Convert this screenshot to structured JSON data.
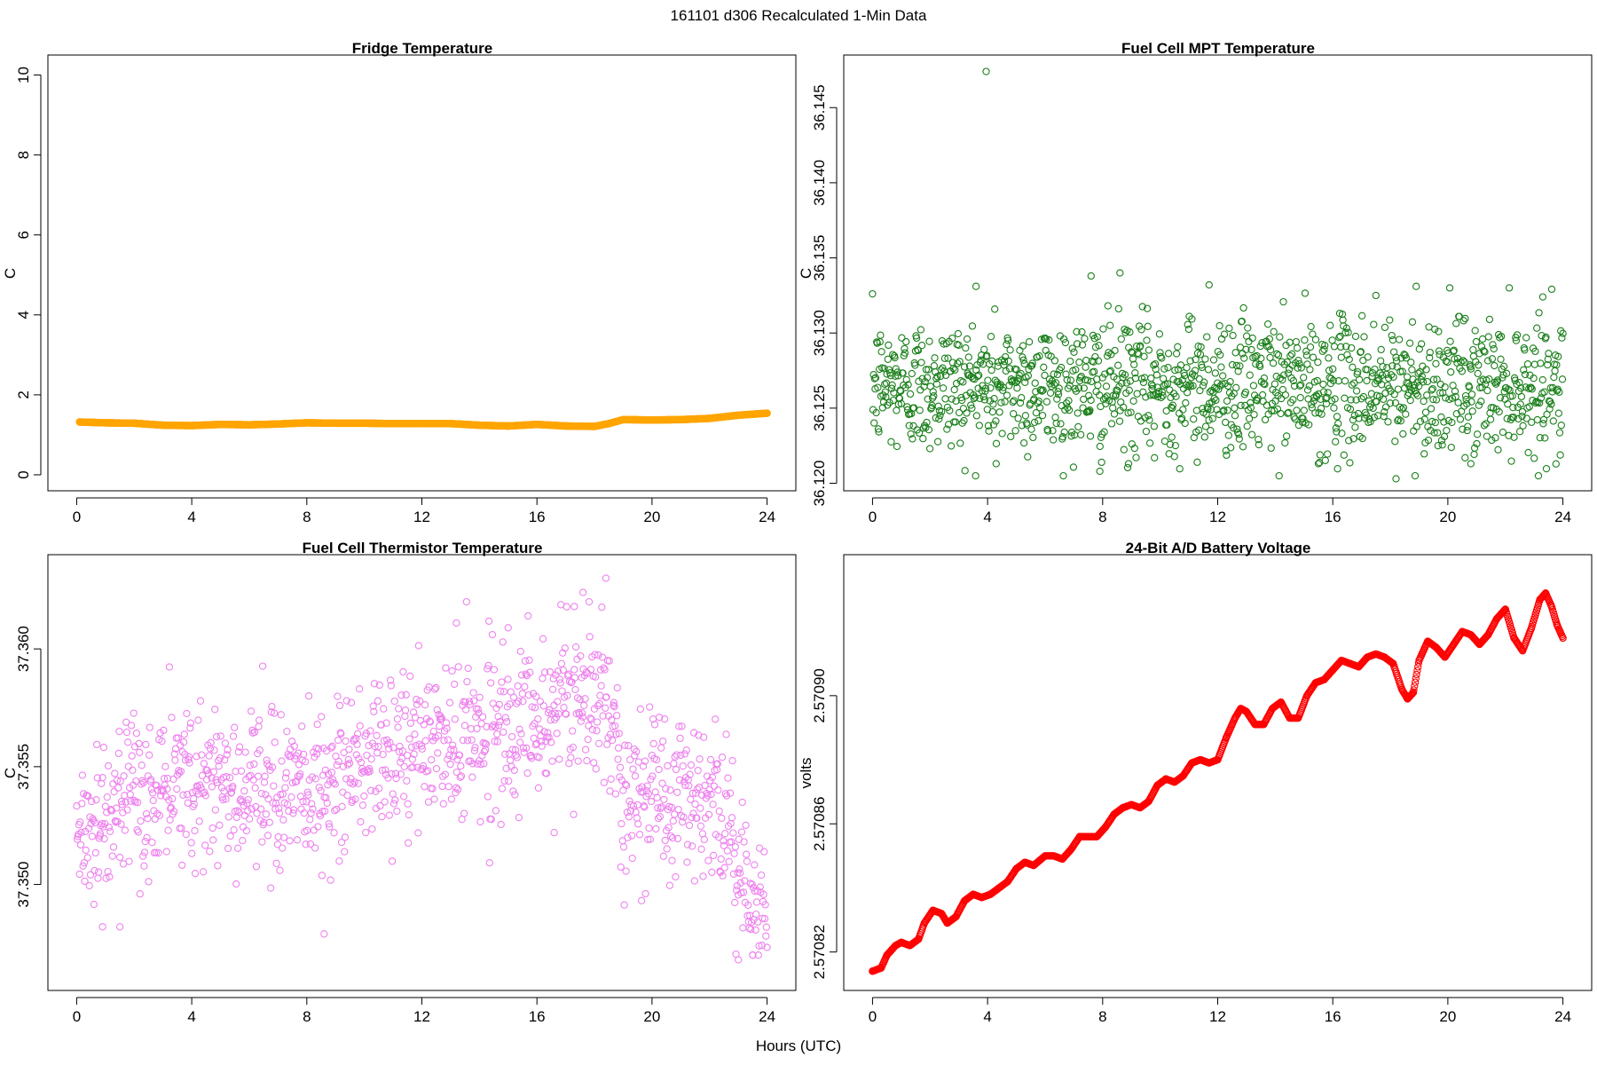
{
  "figure": {
    "title": "161101   d306   Recalculated 1-Min Data",
    "xlabel": "Hours (UTC)"
  },
  "chart_data": [
    {
      "id": "fridge",
      "type": "scatter",
      "title": "Fridge Temperature",
      "ylabel": "C",
      "xlim": [
        -1,
        25
      ],
      "ylim": [
        -0.4,
        10.5
      ],
      "xticks": [
        0,
        4,
        8,
        12,
        16,
        20,
        24
      ],
      "yticks": [
        0,
        2,
        4,
        6,
        8,
        10
      ],
      "ytick_labels": [
        "0",
        "2",
        "4",
        "6",
        "8",
        "10"
      ],
      "color": "#FFA500",
      "marker": "filled-circle",
      "series": [
        {
          "x": [
            0.1,
            1.0,
            2.0,
            3.0,
            4.0,
            5.0,
            6.0,
            7.0,
            8.0,
            9.0,
            10.0,
            11.0,
            12.0,
            13.0,
            14.0,
            15.0,
            16.0,
            17.0,
            18.0,
            18.5,
            19.0,
            20.0,
            21.0,
            22.0,
            23.0,
            24.0
          ],
          "y": [
            1.32,
            1.3,
            1.29,
            1.24,
            1.23,
            1.26,
            1.25,
            1.27,
            1.3,
            1.29,
            1.29,
            1.28,
            1.28,
            1.28,
            1.24,
            1.22,
            1.26,
            1.22,
            1.21,
            1.28,
            1.38,
            1.37,
            1.38,
            1.41,
            1.49,
            1.54
          ]
        }
      ]
    },
    {
      "id": "mpt",
      "type": "scatter",
      "title": "Fuel Cell MPT Temperature",
      "ylabel": "C",
      "xlim": [
        -1,
        25
      ],
      "ylim": [
        36.1195,
        36.1485
      ],
      "xticks": [
        0,
        4,
        8,
        12,
        16,
        20,
        24
      ],
      "yticks": [
        36.12,
        36.125,
        36.13,
        36.135,
        36.14,
        36.145
      ],
      "ytick_labels": [
        "36.120",
        "36.125",
        "36.130",
        "36.135",
        "36.140",
        "36.145"
      ],
      "color": "#1A7F1A",
      "marker": "open-circle",
      "noise": {
        "center": 36.1265,
        "spread": 0.0022,
        "n": 1300
      },
      "series": [
        {
          "x": [
            3.95,
            18.2,
            8.6,
            7.6,
            11.7,
            3.6,
            17.5,
            18.9,
            23.3,
            20.6,
            9.8,
            7.9,
            15.5,
            20.8,
            4.3,
            8.9
          ],
          "y": [
            36.1474,
            36.1203,
            36.134,
            36.1338,
            36.1332,
            36.1331,
            36.1325,
            36.1331,
            36.1324,
            36.1217,
            36.1217,
            36.1208,
            36.1213,
            36.1213,
            36.1213,
            36.1213
          ]
        }
      ]
    },
    {
      "id": "thermistor",
      "type": "scatter",
      "title": "Fuel Cell Thermistor Temperature",
      "ylabel": "C",
      "xlim": [
        -1,
        25
      ],
      "ylim": [
        37.3455,
        37.364
      ],
      "xticks": [
        0,
        4,
        8,
        12,
        16,
        20,
        24
      ],
      "yticks": [
        37.35,
        37.355,
        37.36
      ],
      "ytick_labels": [
        "37.350",
        "37.355",
        "37.360"
      ],
      "color": "#EE82EE",
      "marker": "open-circle",
      "trend": {
        "x": [
          0,
          2,
          4,
          6,
          8,
          10,
          12,
          14,
          16,
          17,
          18,
          18.5,
          19,
          20,
          21,
          22,
          22.5,
          23,
          23.5,
          24
        ],
        "y": [
          37.3523,
          37.3533,
          37.3545,
          37.354,
          37.354,
          37.355,
          37.3558,
          37.3565,
          37.357,
          37.3578,
          37.358,
          37.3575,
          37.354,
          37.3542,
          37.3538,
          37.3535,
          37.3528,
          37.351,
          37.349,
          37.3485
        ]
      },
      "noise": {
        "spread": 0.0017,
        "n": 1200
      },
      "series": [
        {
          "x": [
            18.4,
            17.6,
            17.3,
            13.2,
            15.0,
            8.6,
            23.0,
            23.5,
            1.5,
            0.9,
            16.6
          ],
          "y": [
            37.363,
            37.3624,
            37.3618,
            37.3611,
            37.3609,
            37.3479,
            37.3468,
            37.347,
            37.3482,
            37.3482,
            37.3522
          ]
        }
      ]
    },
    {
      "id": "battery",
      "type": "scatter",
      "title": "24-Bit A/D Battery Voltage",
      "ylabel": "volts",
      "xlim": [
        -1,
        25
      ],
      "ylim": [
        2.570808,
        2.570944
      ],
      "xticks": [
        0,
        4,
        8,
        12,
        16,
        20,
        24
      ],
      "yticks": [
        2.57082,
        2.57086,
        2.5709
      ],
      "ytick_labels": [
        "2.57082",
        "2.57086",
        "2.57090"
      ],
      "color": "#FF0000",
      "marker": "open-circle",
      "series": [
        {
          "x": [
            0.0,
            0.3,
            0.5,
            0.8,
            1.0,
            1.3,
            1.6,
            1.8,
            2.1,
            2.4,
            2.6,
            2.9,
            3.2,
            3.5,
            3.8,
            4.1,
            4.4,
            4.7,
            5.0,
            5.3,
            5.6,
            6.0,
            6.3,
            6.6,
            6.9,
            7.2,
            7.5,
            7.8,
            8.1,
            8.4,
            8.7,
            9.0,
            9.3,
            9.6,
            9.9,
            10.2,
            10.5,
            10.8,
            11.1,
            11.4,
            11.7,
            12.0,
            12.3,
            12.6,
            12.8,
            13.0,
            13.3,
            13.6,
            13.9,
            14.2,
            14.5,
            14.8,
            15.1,
            15.4,
            15.7,
            16.0,
            16.3,
            16.6,
            16.9,
            17.2,
            17.5,
            17.8,
            18.1,
            18.4,
            18.6,
            18.8,
            19.0,
            19.3,
            19.6,
            19.9,
            20.2,
            20.5,
            20.8,
            21.1,
            21.4,
            21.7,
            22.0,
            22.3,
            22.6,
            22.9,
            23.2,
            23.4,
            23.6,
            23.8,
            24.0
          ],
          "y": [
            2.570814,
            2.570815,
            2.570819,
            2.570822,
            2.570823,
            2.570822,
            2.570824,
            2.570829,
            2.570833,
            2.570832,
            2.570829,
            2.570831,
            2.570836,
            2.570838,
            2.570837,
            2.570838,
            2.57084,
            2.570842,
            2.570846,
            2.570848,
            2.570847,
            2.57085,
            2.57085,
            2.570849,
            2.570852,
            2.570856,
            2.570856,
            2.570856,
            2.570859,
            2.570863,
            2.570865,
            2.570866,
            2.570865,
            2.570867,
            2.570872,
            2.570874,
            2.570873,
            2.570875,
            2.570879,
            2.57088,
            2.570879,
            2.57088,
            2.570887,
            2.570893,
            2.570896,
            2.570895,
            2.570891,
            2.570891,
            2.570896,
            2.570898,
            2.570893,
            2.570893,
            2.5709,
            2.570904,
            2.570905,
            2.570908,
            2.570911,
            2.57091,
            2.570909,
            2.570912,
            2.570913,
            2.570912,
            2.57091,
            2.570902,
            2.570899,
            2.570901,
            2.570911,
            2.570917,
            2.570915,
            2.570912,
            2.570916,
            2.57092,
            2.570919,
            2.570916,
            2.570919,
            2.570924,
            2.570927,
            2.570918,
            2.570914,
            2.570921,
            2.57093,
            2.570932,
            2.570928,
            2.570922,
            2.570918
          ]
        }
      ]
    }
  ]
}
